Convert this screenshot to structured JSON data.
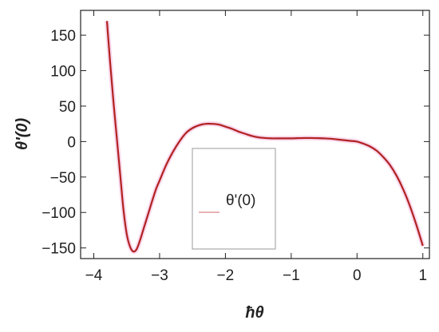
{
  "chart_data": {
    "type": "line",
    "xlabel": "ħθ",
    "ylabel": "θ'(0)",
    "xlim": [
      -4.2,
      1.1
    ],
    "ylim": [
      -165,
      185
    ],
    "xticks": [
      -4,
      -3,
      -2,
      -1,
      0,
      1
    ],
    "xtick_labels": [
      "−4",
      "−3",
      "−2",
      "−1",
      "0",
      "1"
    ],
    "yticks": [
      -150,
      -100,
      -50,
      0,
      50,
      100,
      150
    ],
    "ytick_labels": [
      "−150",
      "−100",
      "−50",
      "0",
      "50",
      "100",
      "150"
    ],
    "grid": false,
    "legend_position": "bottom-center",
    "series": [
      {
        "name": "θ'(0)",
        "color": "#b22222",
        "x": [
          -3.8,
          -3.75,
          -3.7,
          -3.65,
          -3.6,
          -3.55,
          -3.5,
          -3.45,
          -3.4,
          -3.35,
          -3.3,
          -3.25,
          -3.2,
          -3.15,
          -3.1,
          -3.05,
          -3.0,
          -2.9,
          -2.8,
          -2.7,
          -2.6,
          -2.5,
          -2.4,
          -2.3,
          -2.2,
          -2.1,
          -2.0,
          -1.9,
          -1.8,
          -1.7,
          -1.6,
          -1.5,
          -1.4,
          -1.3,
          -1.2,
          -1.1,
          -1.0,
          -0.9,
          -0.8,
          -0.7,
          -0.6,
          -0.5,
          -0.4,
          -0.3,
          -0.2,
          -0.1,
          0.0,
          0.1,
          0.2,
          0.3,
          0.4,
          0.5,
          0.6,
          0.7,
          0.8,
          0.9,
          1.0
        ],
        "y": [
          170,
          110,
          55,
          5,
          -45,
          -95,
          -130,
          -148,
          -155,
          -152,
          -140,
          -125,
          -110,
          -95,
          -80,
          -66,
          -55,
          -33,
          -15,
          0,
          12,
          19,
          23,
          25,
          25,
          24,
          21,
          18,
          14,
          11,
          8,
          6,
          5,
          4.5,
          4.5,
          4.5,
          4.5,
          4.8,
          5,
          5,
          4.8,
          4.5,
          4,
          3,
          2,
          1,
          0,
          -3,
          -7,
          -13,
          -22,
          -33,
          -48,
          -67,
          -90,
          -117,
          -147
        ]
      }
    ]
  }
}
